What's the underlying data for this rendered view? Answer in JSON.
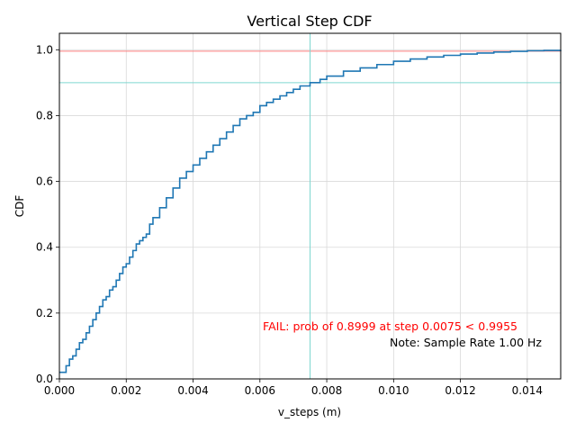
{
  "chart_data": {
    "type": "line",
    "title": "Vertical Step CDF",
    "xlabel": "v_steps (m)",
    "ylabel": "CDF",
    "xlim": [
      0,
      0.015
    ],
    "ylim": [
      0,
      1.05
    ],
    "xticks": [
      "0.000",
      "0.002",
      "0.004",
      "0.006",
      "0.008",
      "0.010",
      "0.012",
      "0.014"
    ],
    "xtick_values": [
      0,
      0.002,
      0.004,
      0.006,
      0.008,
      0.01,
      0.012,
      0.014
    ],
    "yticks": [
      "0.0",
      "0.2",
      "0.4",
      "0.6",
      "0.8",
      "1.0"
    ],
    "ytick_values": [
      0,
      0.2,
      0.4,
      0.6,
      0.8,
      1.0
    ],
    "grid": true,
    "series": [
      {
        "color": "#1f77b4",
        "x": [
          0,
          0.0002,
          0.0003,
          0.0004,
          0.0005,
          0.0006,
          0.0007,
          0.0008,
          0.0009,
          0.001,
          0.0011,
          0.0012,
          0.0013,
          0.0014,
          0.0015,
          0.0016,
          0.0017,
          0.0018,
          0.0019,
          0.002,
          0.0021,
          0.0022,
          0.0023,
          0.0024,
          0.0025,
          0.0026,
          0.0027,
          0.0028,
          0.003,
          0.0032,
          0.0034,
          0.0036,
          0.0038,
          0.004,
          0.0042,
          0.0044,
          0.0046,
          0.0048,
          0.005,
          0.0052,
          0.0054,
          0.0056,
          0.0058,
          0.006,
          0.0062,
          0.0064,
          0.0066,
          0.0068,
          0.007,
          0.0072,
          0.0075,
          0.0078,
          0.008,
          0.0085,
          0.009,
          0.0095,
          0.01,
          0.0105,
          0.011,
          0.0115,
          0.012,
          0.0125,
          0.013,
          0.0135,
          0.014,
          0.0145,
          0.015
        ],
        "y": [
          0.02,
          0.04,
          0.06,
          0.07,
          0.09,
          0.11,
          0.12,
          0.14,
          0.16,
          0.18,
          0.2,
          0.22,
          0.24,
          0.25,
          0.27,
          0.28,
          0.3,
          0.32,
          0.34,
          0.35,
          0.37,
          0.39,
          0.41,
          0.42,
          0.43,
          0.44,
          0.47,
          0.49,
          0.52,
          0.55,
          0.58,
          0.61,
          0.63,
          0.65,
          0.67,
          0.69,
          0.71,
          0.73,
          0.75,
          0.77,
          0.79,
          0.8,
          0.81,
          0.83,
          0.84,
          0.85,
          0.86,
          0.87,
          0.88,
          0.89,
          0.9,
          0.91,
          0.92,
          0.935,
          0.945,
          0.955,
          0.965,
          0.972,
          0.978,
          0.983,
          0.987,
          0.99,
          0.993,
          0.995,
          0.997,
          0.998,
          0.999
        ]
      }
    ],
    "reference_lines": {
      "horizontal": [
        {
          "value": 0.9955,
          "color": "#ff7f7f"
        },
        {
          "value": 0.8999,
          "color": "#7fd6d0"
        }
      ],
      "vertical": [
        {
          "value": 0.0075,
          "color": "#7fd6d0"
        }
      ]
    },
    "annotations": [
      {
        "text": "FAIL: prob of 0.8999 at step 0.0075 < 0.9955",
        "color": "#ff0000"
      },
      {
        "text": "Note: Sample Rate 1.00 Hz",
        "color": "#000000"
      }
    ]
  }
}
